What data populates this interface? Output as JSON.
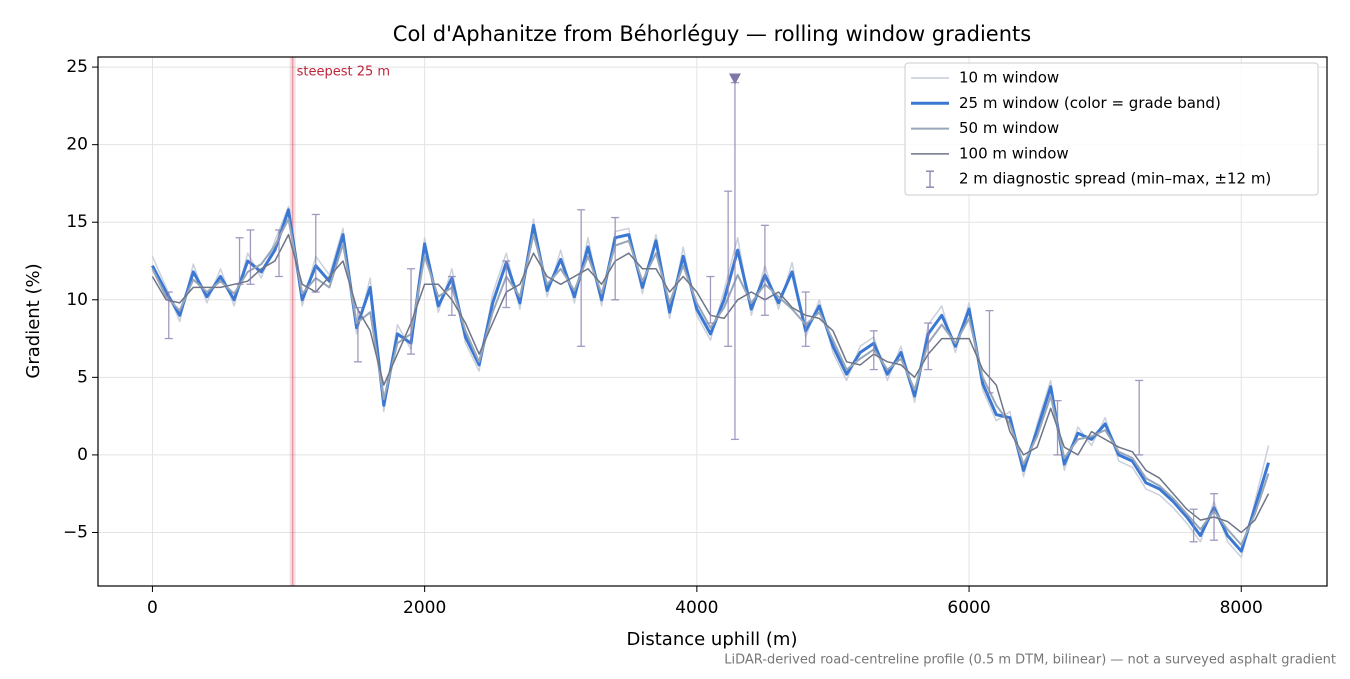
{
  "chart_data": {
    "type": "line",
    "title": "Col d'Aphanitze from Béhorléguy — rolling window gradients",
    "xlabel": "Distance uphill (m)",
    "ylabel": "Gradient (%)",
    "footnote": "LiDAR-derived road-centreline profile (0.5 m DTM, bilinear) — not a surveyed asphalt gradient",
    "xlim": [
      -400,
      8630
    ],
    "ylim": [
      -8.45,
      25.65
    ],
    "xticks": [
      0,
      2000,
      4000,
      6000,
      8000
    ],
    "yticks": [
      {
        "value": -5,
        "label": "−5"
      },
      0,
      5,
      10,
      15,
      20,
      25
    ],
    "grid": true,
    "legend": "upper right",
    "x": [
      0,
      100,
      200,
      300,
      400,
      500,
      600,
      700,
      800,
      900,
      1000,
      1100,
      1200,
      1300,
      1400,
      1500,
      1600,
      1700,
      1800,
      1900,
      2000,
      2100,
      2200,
      2300,
      2400,
      2500,
      2600,
      2700,
      2800,
      2900,
      3000,
      3100,
      3200,
      3300,
      3400,
      3500,
      3600,
      3700,
      3800,
      3900,
      4000,
      4100,
      4200,
      4300,
      4400,
      4500,
      4600,
      4700,
      4800,
      4900,
      5000,
      5100,
      5200,
      5300,
      5400,
      5500,
      5600,
      5700,
      5800,
      5900,
      6000,
      6100,
      6200,
      6300,
      6400,
      6500,
      6600,
      6700,
      6800,
      6900,
      7000,
      7100,
      7200,
      7300,
      7400,
      7500,
      7600,
      7700,
      7800,
      7900,
      8000,
      8100,
      8200
    ],
    "series": [
      {
        "name": "10 m window",
        "color": "#c4cbd8",
        "width": 1.5,
        "values": [
          12.8,
          10.8,
          8.6,
          12.3,
          9.8,
          12,
          9.6,
          13,
          11.4,
          13.8,
          16,
          9.6,
          12.8,
          11.6,
          14.6,
          7.8,
          11.4,
          2.8,
          8.4,
          6.8,
          14,
          9.2,
          12,
          7.2,
          5.4,
          10.4,
          13,
          9.4,
          15.2,
          10.2,
          13.2,
          9.8,
          14,
          9.6,
          14.4,
          14.6,
          10.4,
          14.2,
          8.8,
          13.4,
          9,
          7.4,
          10.6,
          14,
          9,
          12.2,
          9.4,
          12.4,
          7.6,
          10,
          6.6,
          4.8,
          7,
          7.6,
          4.8,
          7,
          3.4,
          8.4,
          9.6,
          6.6,
          9.8,
          4.2,
          2.2,
          2.8,
          -1.4,
          2,
          4.8,
          -1,
          1.8,
          0.6,
          2.4,
          -0.4,
          -0.8,
          -2.2,
          -2.6,
          -3.4,
          -4.4,
          -5.6,
          -3,
          -5.6,
          -6.6,
          -3,
          0.6
        ]
      },
      {
        "name": "25 m window (color = grade band)",
        "color": "#3a78d4",
        "width": 3,
        "values": [
          12.2,
          10.5,
          9,
          11.8,
          10.2,
          11.5,
          10,
          12.5,
          11.8,
          13.2,
          15.8,
          10,
          12.2,
          11.2,
          14.2,
          8.2,
          10.8,
          3.2,
          7.8,
          7.2,
          13.6,
          9.6,
          11.4,
          7.6,
          5.8,
          9.8,
          12.4,
          9.8,
          14.8,
          10.6,
          12.6,
          10.2,
          13.4,
          10,
          14,
          14.2,
          10.8,
          13.8,
          9.2,
          12.8,
          9.4,
          7.8,
          10,
          13.2,
          9.4,
          11.6,
          9.8,
          11.8,
          8,
          9.6,
          7,
          5.2,
          6.6,
          7.2,
          5.2,
          6.6,
          3.8,
          7.8,
          9,
          7,
          9.4,
          4.6,
          2.6,
          2.4,
          -1,
          1.6,
          4.4,
          -0.6,
          1.4,
          1,
          2,
          0,
          -0.4,
          -1.8,
          -2.2,
          -3,
          -4,
          -5.2,
          -3.4,
          -5.2,
          -6.2,
          -3.4,
          -0.5
        ]
      },
      {
        "name": "50 m window",
        "color": "#97a6b8",
        "width": 2,
        "values": [
          12,
          10.2,
          9.3,
          11.3,
          10.5,
          11.2,
          10.4,
          11.8,
          12.3,
          13.5,
          15.2,
          10.4,
          11.4,
          10.8,
          13.6,
          8.5,
          9.2,
          3.6,
          7.2,
          7.8,
          12.8,
          10.2,
          10.8,
          8,
          6,
          9.2,
          11.5,
          10.2,
          14.2,
          11,
          12,
          10.6,
          12.8,
          10.4,
          13.5,
          13.8,
          11.2,
          13,
          9.8,
          12.2,
          9.8,
          8.2,
          9.5,
          11.6,
          9.8,
          11,
          10.2,
          9.4,
          8.4,
          9.2,
          7.4,
          5.5,
          6.2,
          6.8,
          5.5,
          6.2,
          4.2,
          7.2,
          8.4,
          7.2,
          8.8,
          5,
          3.2,
          2,
          -0.6,
          1.2,
          3.8,
          -0.2,
          1,
          1.2,
          1.6,
          0.2,
          -0.2,
          -1.5,
          -2,
          -2.8,
          -3.8,
          -4.8,
          -3.6,
          -4.8,
          -5.8,
          -3.8,
          -1.2
        ]
      },
      {
        "name": "100 m window",
        "color": "#6e7587",
        "width": 1.5,
        "values": [
          11.5,
          10,
          9.8,
          10.8,
          10.8,
          10.8,
          11,
          11.2,
          12,
          12.5,
          14.2,
          11,
          10.5,
          11.5,
          12.5,
          9.5,
          8,
          4.5,
          6.5,
          8.5,
          11,
          11,
          10,
          8.5,
          6.5,
          8.5,
          10.5,
          11,
          13,
          11.5,
          11,
          11.5,
          12,
          11,
          12.5,
          13,
          12,
          12,
          10.5,
          11.5,
          10.5,
          9,
          8.8,
          10,
          10.5,
          10,
          10.5,
          9.5,
          9,
          8.8,
          8,
          6,
          5.8,
          6.5,
          6,
          5.8,
          5,
          6.5,
          7.5,
          7.5,
          7.5,
          5.5,
          4.5,
          1.5,
          0,
          0.5,
          3,
          0.5,
          0,
          1.5,
          1,
          0.5,
          0.2,
          -1,
          -1.5,
          -2.5,
          -3.5,
          -4.2,
          -4,
          -4.3,
          -5,
          -4.2,
          -2.5
        ]
      }
    ],
    "errorbars": {
      "name": "2 m diagnostic spread (min–max, ±12 m)",
      "color": "#8a80b0",
      "x": [
        120,
        640,
        720,
        930,
        1200,
        1510,
        1900,
        2200,
        2600,
        3150,
        3400,
        4100,
        4230,
        4280,
        4500,
        4800,
        5300,
        5700,
        6150,
        6650,
        7250,
        7650,
        7800
      ],
      "low": [
        7.5,
        11,
        11,
        11.5,
        10.5,
        6,
        6.5,
        9,
        9.5,
        7,
        10,
        8.5,
        7,
        1,
        9,
        7,
        5.5,
        5.5,
        4,
        0,
        0,
        -5.6,
        -5.5
      ],
      "high": [
        10.5,
        14,
        14.5,
        14.5,
        15.5,
        9.5,
        12,
        11.5,
        12.5,
        15.8,
        15.3,
        11.5,
        17,
        24,
        14.8,
        10.5,
        8,
        8.5,
        9.3,
        3.5,
        4.8,
        -3.5,
        -2.5
      ]
    },
    "annotation": {
      "text": "steepest 25 m",
      "x": 1030,
      "color": "#c0243a"
    },
    "marker": {
      "x": 4280,
      "y": 24.2,
      "color": "#7f77a8"
    }
  }
}
